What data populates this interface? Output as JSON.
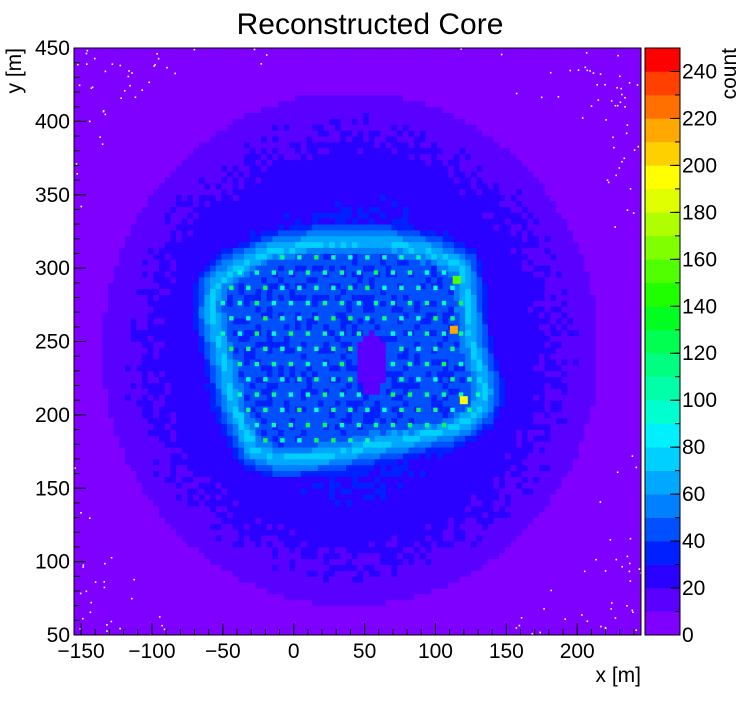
{
  "chart_data": {
    "type": "heatmap",
    "title": "Reconstructed Core",
    "xlabel": "x [m]",
    "ylabel": "y [m]",
    "zlabel": "count",
    "xlim": [
      -155,
      245
    ],
    "ylim": [
      50,
      450
    ],
    "zlim": [
      0,
      250
    ],
    "x_ticks": [
      -150,
      -100,
      -50,
      0,
      50,
      100,
      150,
      200
    ],
    "y_ticks": [
      50,
      100,
      150,
      200,
      250,
      300,
      350,
      400,
      450
    ],
    "z_ticks": [
      0,
      20,
      40,
      60,
      80,
      100,
      120,
      140,
      160,
      180,
      200,
      220,
      240
    ],
    "z_step": 10,
    "palette": [
      "#7f00ff",
      "#5a00ff",
      "#2a00ff",
      "#0020ff",
      "#0050ff",
      "#0080ff",
      "#00a8ff",
      "#00d0ff",
      "#00f0ff",
      "#00ffd0",
      "#00ffa8",
      "#00ff80",
      "#00ff50",
      "#00ff20",
      "#20ff00",
      "#50ff00",
      "#80ff00",
      "#b0ff00",
      "#e0ff00",
      "#ffff00",
      "#ffd000",
      "#ffa800",
      "#ff7000",
      "#ff4000",
      "#ff0000"
    ],
    "background_count": 6,
    "array_outline": [
      [
        -55,
        288
      ],
      [
        -42,
        300
      ],
      [
        -15,
        312
      ],
      [
        20,
        318
      ],
      [
        65,
        318
      ],
      [
        95,
        312
      ],
      [
        118,
        302
      ],
      [
        122,
        285
      ],
      [
        125,
        250
      ],
      [
        132,
        228
      ],
      [
        135,
        215
      ],
      [
        130,
        202
      ],
      [
        115,
        192
      ],
      [
        85,
        185
      ],
      [
        50,
        178
      ],
      [
        20,
        172
      ],
      [
        -10,
        170
      ],
      [
        -28,
        176
      ],
      [
        -42,
        205
      ],
      [
        -50,
        240
      ],
      [
        -58,
        270
      ]
    ],
    "array_ring_count": 75,
    "array_interior_count": 42,
    "detector_count": 110,
    "detector_spacing_m": 12,
    "hole": {
      "x": 55,
      "y": 235,
      "rx": 10,
      "ry": 22,
      "count": 10
    },
    "hotspots": [
      {
        "x": 115,
        "y": 292,
        "count": 150
      },
      {
        "x": 113,
        "y": 258,
        "count": 215
      },
      {
        "x": 120,
        "y": 210,
        "count": 195
      }
    ]
  }
}
